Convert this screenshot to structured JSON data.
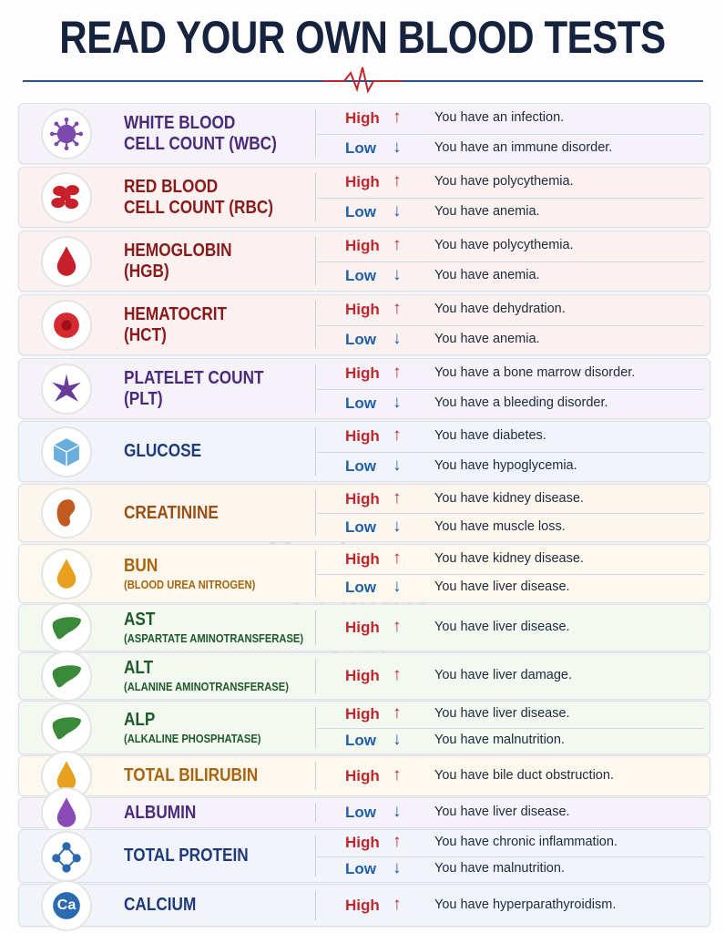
{
  "title": "READ YOUR OWN BLOOD TESTS",
  "watermark": [
    "Barbara",
    "O'Neill",
    "FANS"
  ],
  "rows": [
    {
      "name": [
        "WHITE BLOOD",
        "CELL COUNT (WBC)"
      ],
      "entries": [
        {
          "level": "High",
          "arrow": "↑",
          "color": "#c0262c",
          "text": "You have an infection."
        },
        {
          "level": "Low",
          "arrow": "↓",
          "color": "#1f5fa8",
          "text": "You have an immune disorder."
        }
      ]
    },
    {
      "name": [
        "RED BLOOD",
        "CELL COUNT (RBC)"
      ],
      "entries": [
        {
          "level": "High",
          "arrow": "↑",
          "color": "#c0262c",
          "text": "You have polycythemia."
        },
        {
          "level": "Low",
          "arrow": "↓",
          "color": "#1f5fa8",
          "text": "You have anemia."
        }
      ]
    },
    {
      "name": [
        "HEMOGLOBIN",
        "(HGB)"
      ],
      "entries": [
        {
          "level": "High",
          "arrow": "↑",
          "color": "#c0262c",
          "text": "You have polycythemia."
        },
        {
          "level": "Low",
          "arrow": "↓",
          "color": "#1f5fa8",
          "text": "You have anemia."
        }
      ]
    },
    {
      "name": [
        "HEMATOCRIT",
        "(HCT)"
      ],
      "entries": [
        {
          "level": "High",
          "arrow": "↑",
          "color": "#c0262c",
          "text": "You have dehydration."
        },
        {
          "level": "Low",
          "arrow": "↓",
          "color": "#1f5fa8",
          "text": "You have anemia."
        }
      ]
    },
    {
      "name": [
        "PLATELET COUNT",
        "(PLT)"
      ],
      "entries": [
        {
          "level": "High",
          "arrow": "↑",
          "color": "#c0262c",
          "text": "You have a bone marrow disorder."
        },
        {
          "level": "Low",
          "arrow": "↓",
          "color": "#1f5fa8",
          "text": "You have a bleeding disorder."
        }
      ]
    },
    {
      "name": [
        "GLUCOSE"
      ],
      "entries": [
        {
          "level": "High",
          "arrow": "↑",
          "color": "#c0262c",
          "text": "You have diabetes."
        },
        {
          "level": "Low",
          "arrow": "↓",
          "color": "#1f5fa8",
          "text": "You have hypoglycemia."
        }
      ]
    },
    {
      "name": [
        "CREATININE"
      ],
      "entries": [
        {
          "level": "High",
          "arrow": "↑",
          "color": "#c0262c",
          "text": "You have kidney disease."
        },
        {
          "level": "Low",
          "arrow": "↓",
          "color": "#1f5fa8",
          "text": "You have muscle loss."
        }
      ]
    },
    {
      "name": [
        "BUN"
      ],
      "sub": "(BLOOD UREA NITROGEN)",
      "entries": [
        {
          "level": "High",
          "arrow": "↑",
          "color": "#c0262c",
          "text": "You have kidney disease."
        },
        {
          "level": "Low",
          "arrow": "↓",
          "color": "#1f5fa8",
          "text": "You have liver disease."
        }
      ]
    },
    {
      "name": [
        "AST"
      ],
      "sub": "(ASPARTATE AMINOTRANSFERASE)",
      "entries": [
        {
          "level": "High",
          "arrow": "↑",
          "color": "#c0262c",
          "text": "You have liver disease."
        }
      ]
    },
    {
      "name": [
        "ALT"
      ],
      "sub": "(ALANINE AMINOTRANSFERASE)",
      "entries": [
        {
          "level": "High",
          "arrow": "↑",
          "color": "#c0262c",
          "text": "You have liver damage."
        }
      ]
    },
    {
      "name": [
        "ALP"
      ],
      "sub": "(ALKALINE PHOSPHATASE)",
      "entries": [
        {
          "level": "High",
          "arrow": "↑",
          "color": "#c0262c",
          "text": "You have liver disease."
        },
        {
          "level": "Low",
          "arrow": "↓",
          "color": "#1f5fa8",
          "text": "You have malnutrition."
        }
      ]
    },
    {
      "name": [
        "TOTAL BILIRUBIN"
      ],
      "entries": [
        {
          "level": "High",
          "arrow": "↑",
          "color": "#c0262c",
          "text": "You have bile duct obstruction."
        }
      ]
    },
    {
      "name": [
        "ALBUMIN"
      ],
      "entries": [
        {
          "level": "Low",
          "arrow": "↓",
          "color": "#1f5fa8",
          "text": "You have liver disease."
        }
      ]
    },
    {
      "name": [
        "TOTAL PROTEIN"
      ],
      "entries": [
        {
          "level": "High",
          "arrow": "↑",
          "color": "#c0262c",
          "text": "You have chronic inflammation."
        },
        {
          "level": "Low",
          "arrow": "↓",
          "color": "#1f5fa8",
          "text": "You have malnutrition."
        }
      ]
    },
    {
      "name": [
        "CALCIUM"
      ],
      "icon": "Ca",
      "entries": [
        {
          "level": "High",
          "arrow": "↑",
          "color": "#c0262c",
          "text": "You have hyperparathyroidism."
        }
      ]
    }
  ]
}
